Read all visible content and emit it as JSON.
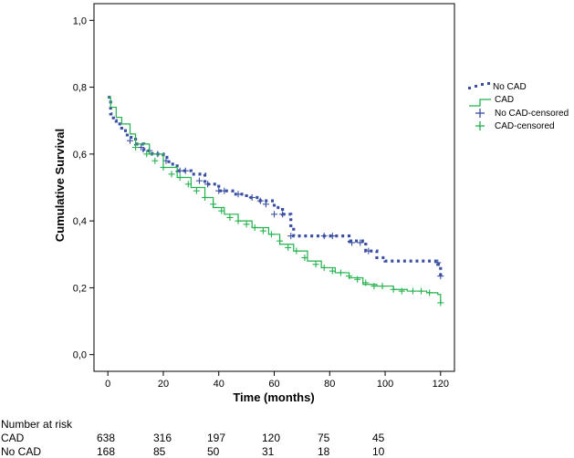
{
  "chart_data": {
    "type": "line",
    "title": "",
    "xlabel": "Time (months)",
    "ylabel": "Cumulative Survival",
    "xlim": [
      -5,
      125
    ],
    "ylim": [
      -0.05,
      1.05
    ],
    "x_ticks": [
      "0",
      "20",
      "40",
      "60",
      "80",
      "100",
      "120"
    ],
    "y_ticks": [
      "0,0",
      "0,2",
      "0,4",
      "0,6",
      "0,8",
      "1,0"
    ],
    "series": [
      {
        "name": "No CAD",
        "style": "dotted",
        "color": "#3a4fa3",
        "points": [
          [
            0,
            0.77
          ],
          [
            1,
            0.72
          ],
          [
            2,
            0.7
          ],
          [
            3,
            0.69
          ],
          [
            5,
            0.67
          ],
          [
            7,
            0.65
          ],
          [
            10,
            0.63
          ],
          [
            13,
            0.61
          ],
          [
            16,
            0.6
          ],
          [
            20,
            0.59
          ],
          [
            22,
            0.57
          ],
          [
            25,
            0.55
          ],
          [
            30,
            0.54
          ],
          [
            35,
            0.51
          ],
          [
            40,
            0.49
          ],
          [
            45,
            0.48
          ],
          [
            50,
            0.47
          ],
          [
            55,
            0.46
          ],
          [
            60,
            0.44
          ],
          [
            63,
            0.42
          ],
          [
            66,
            0.38
          ],
          [
            67,
            0.355
          ],
          [
            75,
            0.355
          ],
          [
            87,
            0.34
          ],
          [
            93,
            0.31
          ],
          [
            97,
            0.29
          ],
          [
            100,
            0.28
          ],
          [
            115,
            0.28
          ],
          [
            119,
            0.27
          ],
          [
            120,
            0.25
          ],
          [
            120,
            0.235
          ]
        ],
        "censored": [
          [
            8,
            0.64
          ],
          [
            12,
            0.62
          ],
          [
            15,
            0.61
          ],
          [
            18,
            0.6
          ],
          [
            21,
            0.58
          ],
          [
            26,
            0.55
          ],
          [
            28,
            0.55
          ],
          [
            33,
            0.52
          ],
          [
            36,
            0.51
          ],
          [
            40,
            0.49
          ],
          [
            42,
            0.49
          ],
          [
            47,
            0.48
          ],
          [
            52,
            0.47
          ],
          [
            55,
            0.46
          ],
          [
            57,
            0.45
          ],
          [
            60,
            0.42
          ],
          [
            63,
            0.42
          ],
          [
            66,
            0.355
          ],
          [
            78,
            0.355
          ],
          [
            81,
            0.355
          ],
          [
            88,
            0.335
          ],
          [
            91,
            0.335
          ],
          [
            94,
            0.31
          ],
          [
            119,
            0.275
          ],
          [
            120,
            0.235
          ]
        ]
      },
      {
        "name": "CAD",
        "style": "solid",
        "color": "#22b14c",
        "points": [
          [
            0,
            0.77
          ],
          [
            1,
            0.74
          ],
          [
            3,
            0.71
          ],
          [
            5,
            0.69
          ],
          [
            8,
            0.66
          ],
          [
            10,
            0.63
          ],
          [
            15,
            0.6
          ],
          [
            20,
            0.56
          ],
          [
            25,
            0.53
          ],
          [
            30,
            0.5
          ],
          [
            35,
            0.47
          ],
          [
            38,
            0.44
          ],
          [
            42,
            0.42
          ],
          [
            47,
            0.4
          ],
          [
            52,
            0.38
          ],
          [
            58,
            0.36
          ],
          [
            62,
            0.33
          ],
          [
            67,
            0.31
          ],
          [
            72,
            0.28
          ],
          [
            77,
            0.26
          ],
          [
            82,
            0.245
          ],
          [
            87,
            0.23
          ],
          [
            92,
            0.21
          ],
          [
            97,
            0.205
          ],
          [
            100,
            0.205
          ],
          [
            103,
            0.195
          ],
          [
            108,
            0.19
          ],
          [
            115,
            0.185
          ],
          [
            119,
            0.18
          ],
          [
            120,
            0.155
          ]
        ],
        "censored": [
          [
            10,
            0.62
          ],
          [
            14,
            0.6
          ],
          [
            17,
            0.58
          ],
          [
            20,
            0.56
          ],
          [
            23,
            0.54
          ],
          [
            26,
            0.53
          ],
          [
            29,
            0.51
          ],
          [
            32,
            0.49
          ],
          [
            35,
            0.47
          ],
          [
            38,
            0.45
          ],
          [
            41,
            0.43
          ],
          [
            44,
            0.41
          ],
          [
            47,
            0.4
          ],
          [
            50,
            0.39
          ],
          [
            53,
            0.38
          ],
          [
            56,
            0.37
          ],
          [
            59,
            0.36
          ],
          [
            62,
            0.34
          ],
          [
            65,
            0.32
          ],
          [
            68,
            0.31
          ],
          [
            71,
            0.29
          ],
          [
            75,
            0.27
          ],
          [
            78,
            0.26
          ],
          [
            81,
            0.25
          ],
          [
            84,
            0.245
          ],
          [
            87,
            0.235
          ],
          [
            90,
            0.225
          ],
          [
            93,
            0.215
          ],
          [
            96,
            0.205
          ],
          [
            99,
            0.205
          ],
          [
            103,
            0.195
          ],
          [
            106,
            0.19
          ],
          [
            110,
            0.19
          ],
          [
            113,
            0.19
          ],
          [
            116,
            0.185
          ],
          [
            120,
            0.155
          ]
        ]
      }
    ],
    "legend": {
      "position": "right",
      "entries": [
        "No CAD",
        "CAD",
        "No CAD-censored",
        "CAD-censored"
      ]
    },
    "risk_table": {
      "title": "Number at risk",
      "columns_x": [
        0,
        20,
        40,
        60,
        80,
        100
      ],
      "rows": [
        {
          "label": "CAD",
          "values": [
            "638",
            "316",
            "197",
            "120",
            "75",
            "45"
          ]
        },
        {
          "label": "No CAD",
          "values": [
            "168",
            "85",
            "50",
            "31",
            "18",
            "10"
          ]
        }
      ]
    }
  }
}
